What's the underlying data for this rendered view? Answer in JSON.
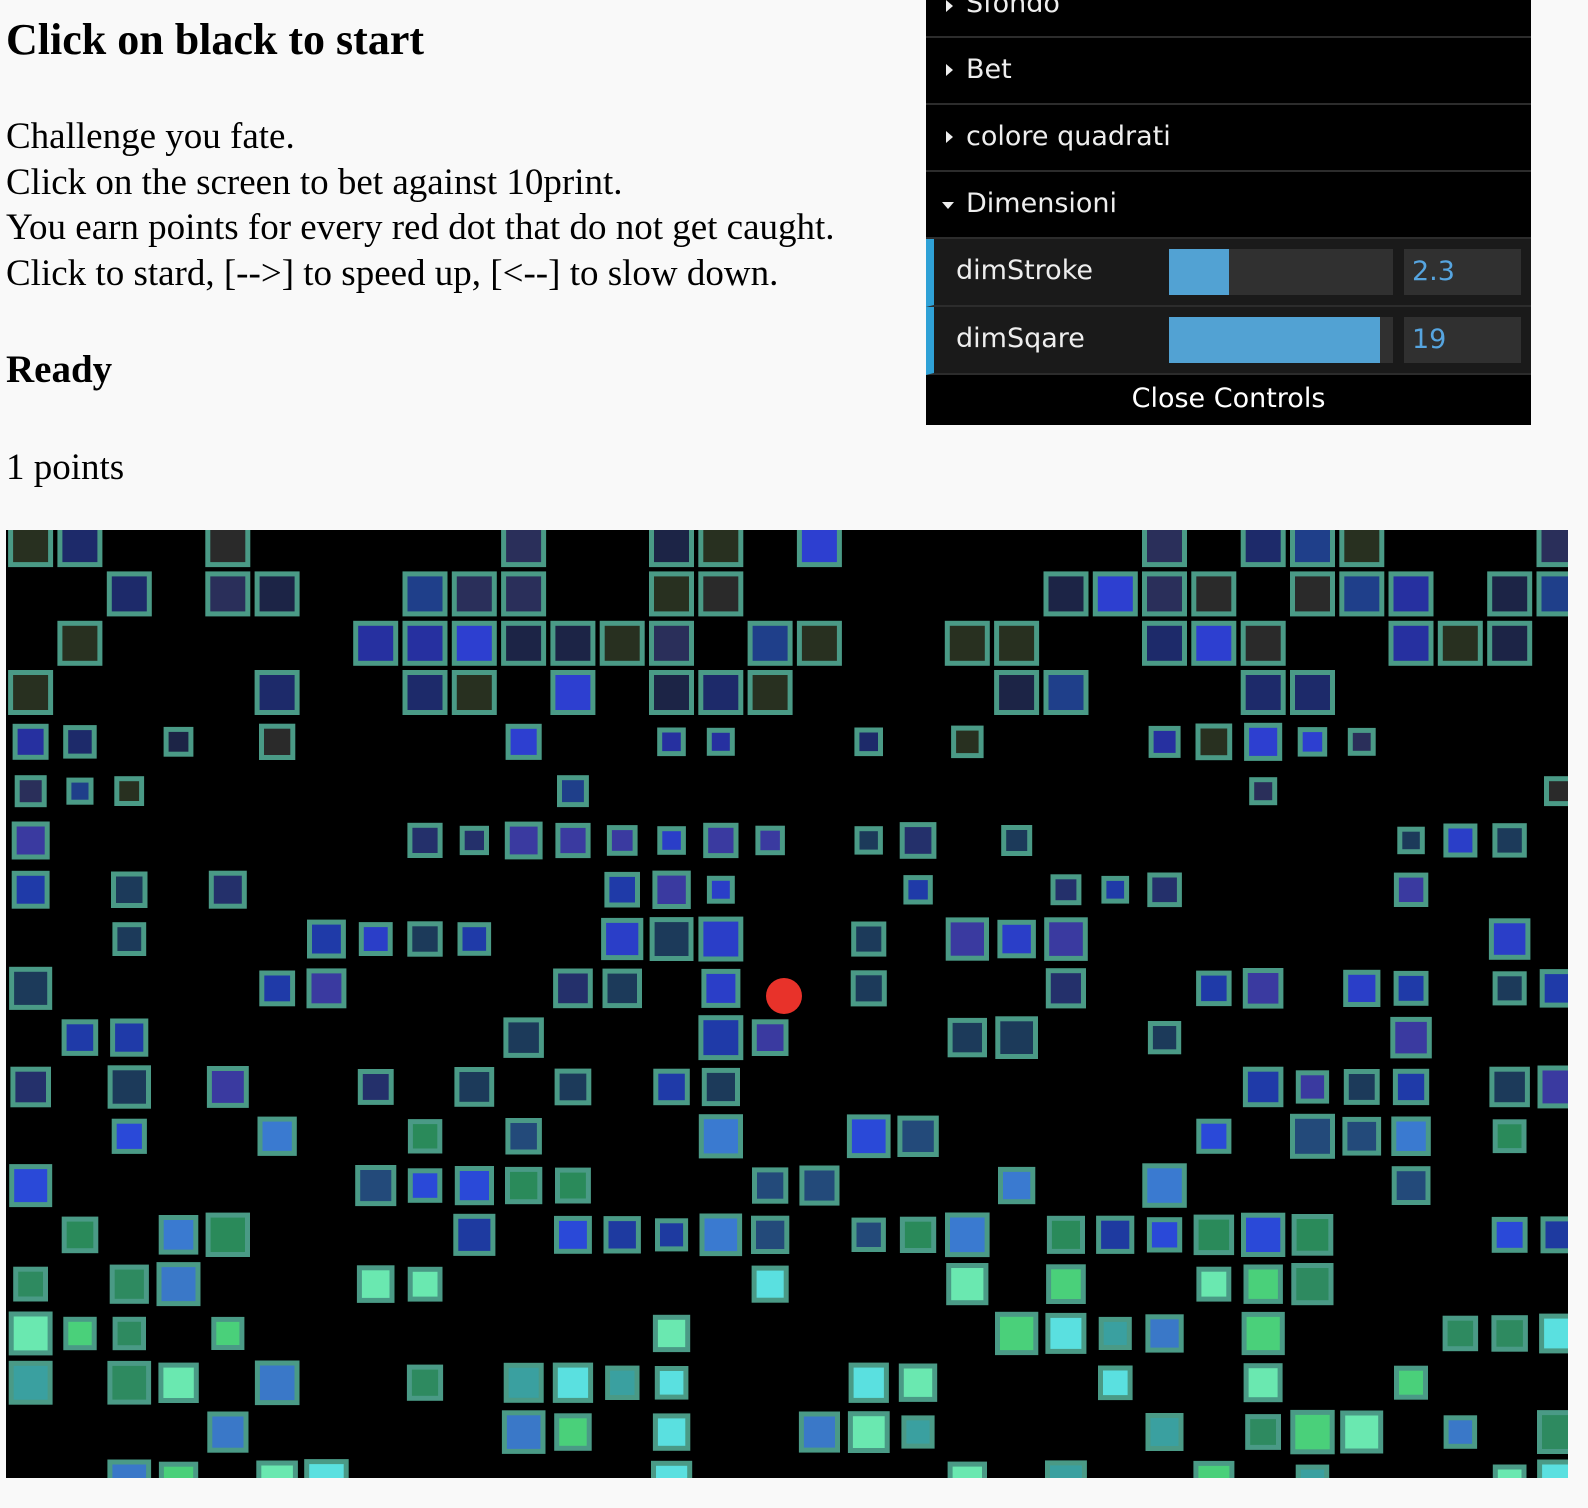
{
  "page": {
    "title": "Click on black to start",
    "intro_lines": [
      "Challenge you fate.",
      "Click on the screen to bet against 10print.",
      "You earn points for every red dot that do not get caught.",
      "Click to stard, [-->] to speed up, [<--] to slow down."
    ],
    "status": "Ready",
    "points": "1 points"
  },
  "gui": {
    "folders": [
      {
        "label": "Sfondo",
        "open": false
      },
      {
        "label": "Bet",
        "open": false
      },
      {
        "label": "colore quadrati",
        "open": false
      },
      {
        "label": "Dimensioni",
        "open": true
      }
    ],
    "controls": [
      {
        "label": "dimStroke",
        "value": "2.3",
        "fill": 0.27
      },
      {
        "label": "dimSqare",
        "value": "19",
        "fill": 0.94
      }
    ],
    "close_label": "Close Controls",
    "accent_color": "#2fa1d6",
    "slider_color": "#52a2d3",
    "number_color": "#56a5e0"
  },
  "game": {
    "background_color": "#000000",
    "stroke_color": "#4a9a86",
    "dot_color": "#e8322a"
  }
}
